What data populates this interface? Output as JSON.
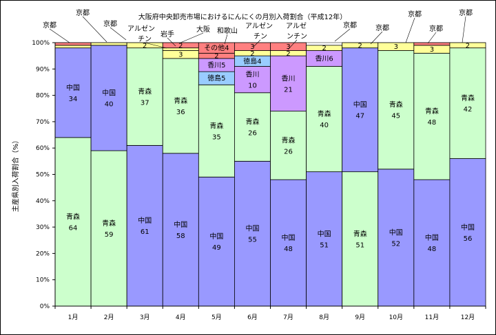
{
  "chart_data": {
    "type": "bar",
    "stacked": true,
    "title": "大阪府中央卸売市場におけるにんにくの月別入荷割合（平成12年）",
    "xlabel": "",
    "ylabel": "主産県別入荷割合（%）",
    "ylim": [
      0,
      100
    ],
    "y_ticks": [
      "0%",
      "10%",
      "20%",
      "30%",
      "40%",
      "50%",
      "60%",
      "70%",
      "80%",
      "90%",
      "100%"
    ],
    "grid": true,
    "categories": [
      "1月",
      "2月",
      "3月",
      "4月",
      "5月",
      "6月",
      "7月",
      "8月",
      "9月",
      "10月",
      "11月",
      "12月"
    ],
    "colors": {
      "青森": "#ccffcc",
      "中国": "#9999ff",
      "香川": "#cc99ff",
      "徳島": "#99ccff",
      "アルゼンチン": "#ffff99",
      "その他": "#ff8080",
      "京都": "#ffff99",
      "岩手": "#ffff99",
      "大阪": "#ff8080",
      "和歌山": "#ff8080"
    },
    "bars": [
      {
        "category": "1月",
        "segments": [
          {
            "name": "青森",
            "value": 64,
            "label": "青森",
            "value_label": "64"
          },
          {
            "name": "中国",
            "value": 34,
            "label": "中国",
            "value_label": "34"
          },
          {
            "name": "京都",
            "value": 1,
            "label": "",
            "value_label": ""
          },
          {
            "name": "その他",
            "value": 1,
            "label": "",
            "value_label": ""
          }
        ]
      },
      {
        "category": "2月",
        "segments": [
          {
            "name": "青森",
            "value": 59,
            "label": "青森",
            "value_label": "59"
          },
          {
            "name": "中国",
            "value": 40,
            "label": "中国",
            "value_label": "40"
          },
          {
            "name": "京都",
            "value": 1,
            "label": "",
            "value_label": ""
          }
        ]
      },
      {
        "category": "3月",
        "segments": [
          {
            "name": "中国",
            "value": 61,
            "label": "中国",
            "value_label": "61"
          },
          {
            "name": "青森",
            "value": 37,
            "label": "青森",
            "value_label": "37"
          },
          {
            "name": "京都",
            "value": 2,
            "label": "",
            "value_label": "2"
          }
        ]
      },
      {
        "category": "4月",
        "segments": [
          {
            "name": "中国",
            "value": 58,
            "label": "中国",
            "value_label": "58"
          },
          {
            "name": "青森",
            "value": 36,
            "label": "青森",
            "value_label": "36"
          },
          {
            "name": "アルゼンチン",
            "value": 3,
            "label": "",
            "value_label": "3"
          },
          {
            "name": "岩手",
            "value": 1,
            "label": "",
            "value_label": ""
          },
          {
            "name": "大阪",
            "value": 2,
            "label": "",
            "value_label": "2"
          }
        ]
      },
      {
        "category": "5月",
        "segments": [
          {
            "name": "中国",
            "value": 49,
            "label": "中国",
            "value_label": "49"
          },
          {
            "name": "青森",
            "value": 35,
            "label": "青森",
            "value_label": "35"
          },
          {
            "name": "徳島",
            "value": 5,
            "label": "",
            "value_label": "徳島5"
          },
          {
            "name": "香川",
            "value": 5,
            "label": "",
            "value_label": "香川5"
          },
          {
            "name": "和歌山",
            "value": 2,
            "label": "",
            "value_label": "2"
          },
          {
            "name": "その他",
            "value": 4,
            "label": "",
            "value_label": "その他4"
          }
        ]
      },
      {
        "category": "6月",
        "segments": [
          {
            "name": "中国",
            "value": 55,
            "label": "中国",
            "value_label": "55"
          },
          {
            "name": "青森",
            "value": 26,
            "label": "青森",
            "value_label": "26"
          },
          {
            "name": "香川",
            "value": 10,
            "label": "香川",
            "value_label": "10"
          },
          {
            "name": "徳島",
            "value": 4,
            "label": "",
            "value_label": "徳島4"
          },
          {
            "name": "京都",
            "value": 2,
            "label": "",
            "value_label": "2"
          },
          {
            "name": "アルゼンチン",
            "value": 0,
            "label": "",
            "value_label": ""
          },
          {
            "name": "その他",
            "value": 3,
            "label": "",
            "value_label": "3"
          }
        ]
      },
      {
        "category": "7月",
        "segments": [
          {
            "name": "中国",
            "value": 48,
            "label": "中国",
            "value_label": "48"
          },
          {
            "name": "青森",
            "value": 26,
            "label": "青森",
            "value_label": "26"
          },
          {
            "name": "香川",
            "value": 21,
            "label": "香川",
            "value_label": "21"
          },
          {
            "name": "アルゼンチン",
            "value": 2,
            "label": "",
            "value_label": "2"
          },
          {
            "name": "その他",
            "value": 3,
            "label": "",
            "value_label": "3"
          }
        ]
      },
      {
        "category": "8月",
        "segments": [
          {
            "name": "中国",
            "value": 51,
            "label": "中国",
            "value_label": "51"
          },
          {
            "name": "青森",
            "value": 40,
            "label": "青森",
            "value_label": "40"
          },
          {
            "name": "香川",
            "value": 6,
            "label": "",
            "value_label": "香川6"
          },
          {
            "name": "京都",
            "value": 2,
            "label": "",
            "value_label": "2"
          }
        ]
      },
      {
        "category": "9月",
        "segments": [
          {
            "name": "青森",
            "value": 51,
            "label": "青森",
            "value_label": "51"
          },
          {
            "name": "中国",
            "value": 47,
            "label": "中国",
            "value_label": "47"
          },
          {
            "name": "京都",
            "value": 2,
            "label": "",
            "value_label": "2"
          }
        ]
      },
      {
        "category": "10月",
        "segments": [
          {
            "name": "中国",
            "value": 52,
            "label": "中国",
            "value_label": "52"
          },
          {
            "name": "青森",
            "value": 45,
            "label": "青森",
            "value_label": "45"
          },
          {
            "name": "京都",
            "value": 3,
            "label": "",
            "value_label": "3"
          }
        ]
      },
      {
        "category": "11月",
        "segments": [
          {
            "name": "中国",
            "value": 48,
            "label": "中国",
            "value_label": "48"
          },
          {
            "name": "青森",
            "value": 48,
            "label": "青森",
            "value_label": "48"
          },
          {
            "name": "京都",
            "value": 3,
            "label": "",
            "value_label": "3"
          },
          {
            "name": "その他",
            "value": 1,
            "label": "",
            "value_label": ""
          }
        ]
      },
      {
        "category": "12月",
        "segments": [
          {
            "name": "中国",
            "value": 56,
            "label": "中国",
            "value_label": "56"
          },
          {
            "name": "青森",
            "value": 42,
            "label": "青森",
            "value_label": "42"
          },
          {
            "name": "京都",
            "value": 2,
            "label": "",
            "value_label": "2"
          }
        ]
      }
    ],
    "annotations": [
      {
        "text": "京都",
        "bar": "1月"
      },
      {
        "text": "京都",
        "bar": "2月"
      },
      {
        "text": "京都",
        "bar": "3月"
      },
      {
        "text": "アルゼン",
        "bar": "4月"
      },
      {
        "text": "チン",
        "bar": "4月"
      },
      {
        "text": "岩手",
        "bar": "4月"
      },
      {
        "text": "大阪",
        "bar": "4月"
      },
      {
        "text": "和歌山",
        "bar": "5月"
      },
      {
        "text": "アルゼン",
        "bar": "6月"
      },
      {
        "text": "チン",
        "bar": "6月"
      },
      {
        "text": "アルゼ",
        "bar": "7月"
      },
      {
        "text": "ンチン",
        "bar": "7月"
      },
      {
        "text": "京都",
        "bar": "8月"
      },
      {
        "text": "京都",
        "bar": "9月"
      },
      {
        "text": "京都",
        "bar": "10月"
      },
      {
        "text": "京都",
        "bar": "11月"
      },
      {
        "text": "京都",
        "bar": "12月"
      }
    ]
  }
}
